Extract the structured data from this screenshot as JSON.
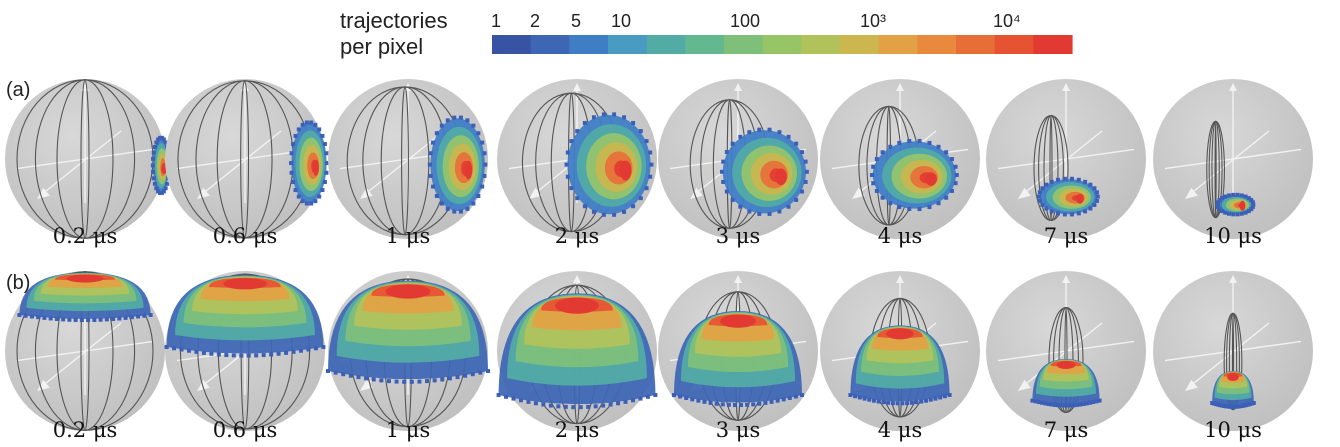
{
  "colorbar": {
    "title_line1": "trajectories",
    "title_line2": "per pixel",
    "ticks": [
      "1",
      "2",
      "5",
      "10",
      "100",
      "10³",
      "10⁴"
    ],
    "colors": [
      "#3953a4",
      "#3d66b5",
      "#3f7ec5",
      "#4a9bc2",
      "#52aca5",
      "#63b890",
      "#7ec07a",
      "#98c468",
      "#b2c25a",
      "#ccb64e",
      "#e2a145",
      "#e8893e",
      "#e86e37",
      "#e65333",
      "#e23a33"
    ]
  },
  "rows": [
    {
      "label": "(a)",
      "times": [
        "0.2 μs",
        "0.6 μs",
        "1 μs",
        "2 μs",
        "3 μs",
        "4 μs",
        "7 μs",
        "10 μs"
      ]
    },
    {
      "label": "(b)",
      "times": [
        "0.2 μs",
        "0.6 μs",
        "1 μs",
        "2 μs",
        "3 μs",
        "4 μs",
        "7 μs",
        "10 μs"
      ]
    }
  ],
  "colors": {
    "sphere": "#c9c9c9",
    "meridian": "#555555",
    "axis": "#f2f2f2",
    "edge_blue": "#3c5fb8",
    "core_red": "#e23a33"
  }
}
